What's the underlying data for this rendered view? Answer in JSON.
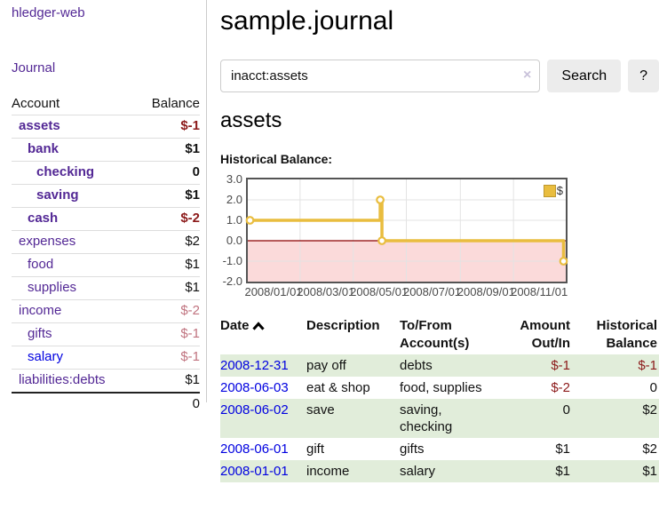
{
  "app": {
    "brand": "hledger-web",
    "nav": {
      "journal": "Journal"
    }
  },
  "sidebar": {
    "header": {
      "account": "Account",
      "balance": "Balance"
    },
    "accounts": [
      {
        "name": "assets",
        "depth": 0,
        "bold": true,
        "link_color": "purple",
        "balance": "$-1",
        "balance_class": "neg"
      },
      {
        "name": "bank",
        "depth": 1,
        "bold": true,
        "link_color": "purple",
        "balance": "$1",
        "balance_class": "pos"
      },
      {
        "name": "checking",
        "depth": 2,
        "bold": true,
        "link_color": "purple",
        "balance": "0",
        "balance_class": "pos"
      },
      {
        "name": "saving",
        "depth": 2,
        "bold": true,
        "link_color": "purple",
        "balance": "$1",
        "balance_class": "pos"
      },
      {
        "name": "cash",
        "depth": 1,
        "bold": true,
        "link_color": "purple",
        "balance": "$-2",
        "balance_class": "neg"
      },
      {
        "name": "expenses",
        "depth": 0,
        "bold": false,
        "link_color": "purple",
        "balance": "$2",
        "balance_class": "pos"
      },
      {
        "name": "food",
        "depth": 1,
        "bold": false,
        "link_color": "purple",
        "balance": "$1",
        "balance_class": "pos"
      },
      {
        "name": "supplies",
        "depth": 1,
        "bold": false,
        "link_color": "purple",
        "balance": "$1",
        "balance_class": "pos"
      },
      {
        "name": "income",
        "depth": 0,
        "bold": false,
        "link_color": "purple",
        "balance": "$-2",
        "balance_class": "negsoft"
      },
      {
        "name": "gifts",
        "depth": 1,
        "bold": false,
        "link_color": "purple",
        "balance": "$-1",
        "balance_class": "negsoft"
      },
      {
        "name": "salary",
        "depth": 1,
        "bold": false,
        "link_color": "blue",
        "balance": "$-1",
        "balance_class": "negsoft"
      },
      {
        "name": "liabilities:debts",
        "depth": 0,
        "bold": false,
        "link_color": "purple",
        "balance": "$1",
        "balance_class": "pos"
      }
    ],
    "total": "0"
  },
  "main": {
    "title": "sample.journal",
    "search": {
      "value": "inacct:assets",
      "clear_icon": "×",
      "search_button": "Search",
      "help_button": "?"
    },
    "account_heading": "assets",
    "chart_label": "Historical Balance:"
  },
  "chart_data": {
    "type": "line",
    "step": true,
    "title": "Historical Balance",
    "legend": {
      "label": "$",
      "position": "top-right"
    },
    "series": [
      {
        "name": "$",
        "color": "#e9bd3f",
        "points": [
          [
            "2008/01/01",
            1
          ],
          [
            "2008/06/01",
            2
          ],
          [
            "2008/06/03",
            0
          ],
          [
            "2008/12/31",
            -1
          ]
        ]
      }
    ],
    "x_ticks": [
      "2008/01/01",
      "2008/03/01",
      "2008/05/01",
      "2008/07/01",
      "2008/09/01",
      "2008/11/01"
    ],
    "y_ticks": [
      3.0,
      2.0,
      1.0,
      0.0,
      -1.0,
      -2.0
    ],
    "xlim": [
      "2008/01/01",
      "2008/12/31"
    ],
    "ylim": [
      -2,
      3
    ],
    "grid": true,
    "grid_color": "#e3e3e3",
    "negative_region_color": "#fbdada",
    "zero_line_color": "#8b0000",
    "border_color": "#545454"
  },
  "register": {
    "headers": [
      {
        "label": "Date",
        "sort": "asc"
      },
      {
        "label": "Description"
      },
      {
        "label": "To/From Account(s)"
      },
      {
        "label": "Amount Out/In"
      },
      {
        "label": "Historical Balance"
      }
    ],
    "rows": [
      {
        "date": "2008-12-31",
        "description": "pay off",
        "accounts": "debts",
        "amount": "$-1",
        "amount_class": "neg",
        "balance": "$-1",
        "balance_class": "neg"
      },
      {
        "date": "2008-06-03",
        "description": "eat & shop",
        "accounts": "food, supplies",
        "amount": "$-2",
        "amount_class": "neg",
        "balance": "0",
        "balance_class": "pos"
      },
      {
        "date": "2008-06-02",
        "description": "save",
        "accounts": "saving, checking",
        "amount": "0",
        "amount_class": "pos",
        "balance": "$2",
        "balance_class": "pos"
      },
      {
        "date": "2008-06-01",
        "description": "gift",
        "accounts": "gifts",
        "amount": "$1",
        "amount_class": "pos",
        "balance": "$2",
        "balance_class": "pos"
      },
      {
        "date": "2008-01-01",
        "description": "income",
        "accounts": "salary",
        "amount": "$1",
        "amount_class": "pos",
        "balance": "$1",
        "balance_class": "pos"
      }
    ]
  },
  "colors": {
    "accent_purple": "#532895",
    "link_blue": "#0000e0",
    "negative_strong": "#8c1a1a",
    "negative_soft": "#c0737f",
    "row_green": "#e1edda",
    "chart_line": "#e9bd3f"
  }
}
